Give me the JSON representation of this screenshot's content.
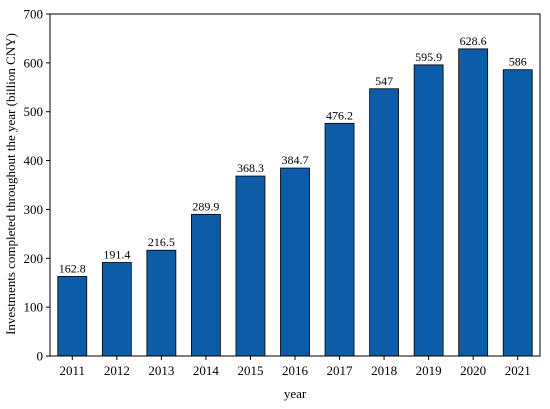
{
  "chart_data": {
    "type": "bar",
    "title": "",
    "xlabel": "year",
    "ylabel": "Investments completed throughout the year (billion CNY)",
    "categories": [
      "2011",
      "2012",
      "2013",
      "2014",
      "2015",
      "2016",
      "2017",
      "2018",
      "2019",
      "2020",
      "2021"
    ],
    "values": [
      162.8,
      191.4,
      216.5,
      289.9,
      368.3,
      384.7,
      476.2,
      547,
      595.9,
      628.6,
      586
    ],
    "value_labels": [
      "162.8",
      "191.4",
      "216.5",
      "289.9",
      "368.3",
      "384.7",
      "476.2",
      "547",
      "595.9",
      "628.6",
      "586"
    ],
    "ylim": [
      0,
      700
    ],
    "yticks": [
      0,
      100,
      200,
      300,
      400,
      500,
      600,
      700
    ],
    "grid": false,
    "legend": "none",
    "colors": {
      "bar_fill": "#0d5ca8",
      "bar_stroke": "#000000",
      "axis": "#000000"
    }
  }
}
